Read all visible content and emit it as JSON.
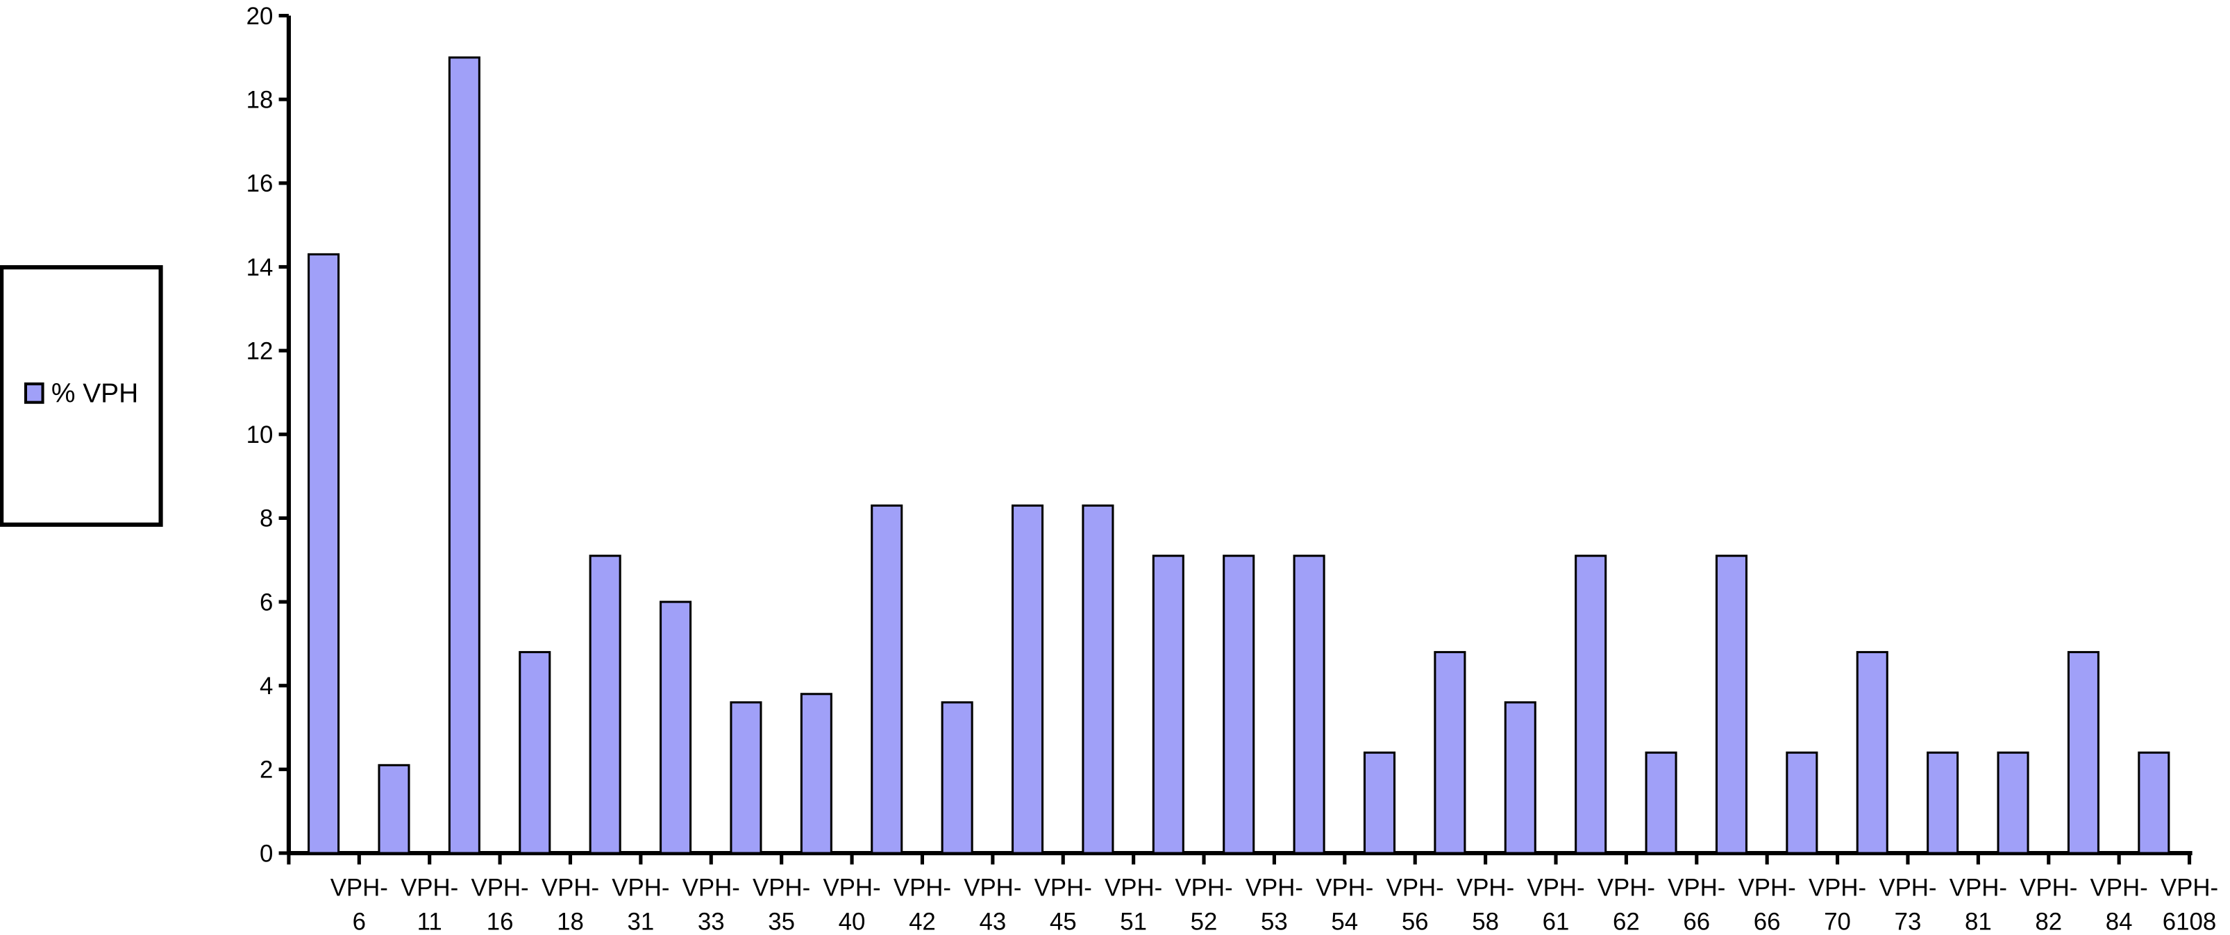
{
  "chart_data": {
    "type": "bar",
    "categories": [
      "VPH-6",
      "VPH-11",
      "VPH-16",
      "VPH-18",
      "VPH-31",
      "VPH-33",
      "VPH-35",
      "VPH-40",
      "VPH-42",
      "VPH-43",
      "VPH-45",
      "VPH-51",
      "VPH-52",
      "VPH-53",
      "VPH-54",
      "VPH-56",
      "VPH-58",
      "VPH-61",
      "VPH-62",
      "VPH-66",
      "VPH-66",
      "VPH-70",
      "VPH-73",
      "VPH-81",
      "VPH-82",
      "VPH-84",
      "VPH-6108"
    ],
    "series": [
      {
        "name": "% VPH",
        "color": "#a0a0f8",
        "values": [
          14.3,
          2.1,
          19,
          4.8,
          7.1,
          6,
          3.6,
          3.8,
          8.3,
          3.6,
          8.3,
          8.3,
          7.1,
          7.1,
          7.1,
          2.4,
          4.8,
          3.6,
          7.1,
          2.4,
          7.1,
          2.4,
          4.8,
          2.4,
          2.4,
          4.8,
          2.4
        ]
      }
    ],
    "ylim": [
      0,
      20
    ],
    "yticks": [
      0,
      2,
      4,
      6,
      8,
      10,
      12,
      14,
      16,
      18,
      20
    ],
    "grid": false,
    "legend": "left"
  }
}
